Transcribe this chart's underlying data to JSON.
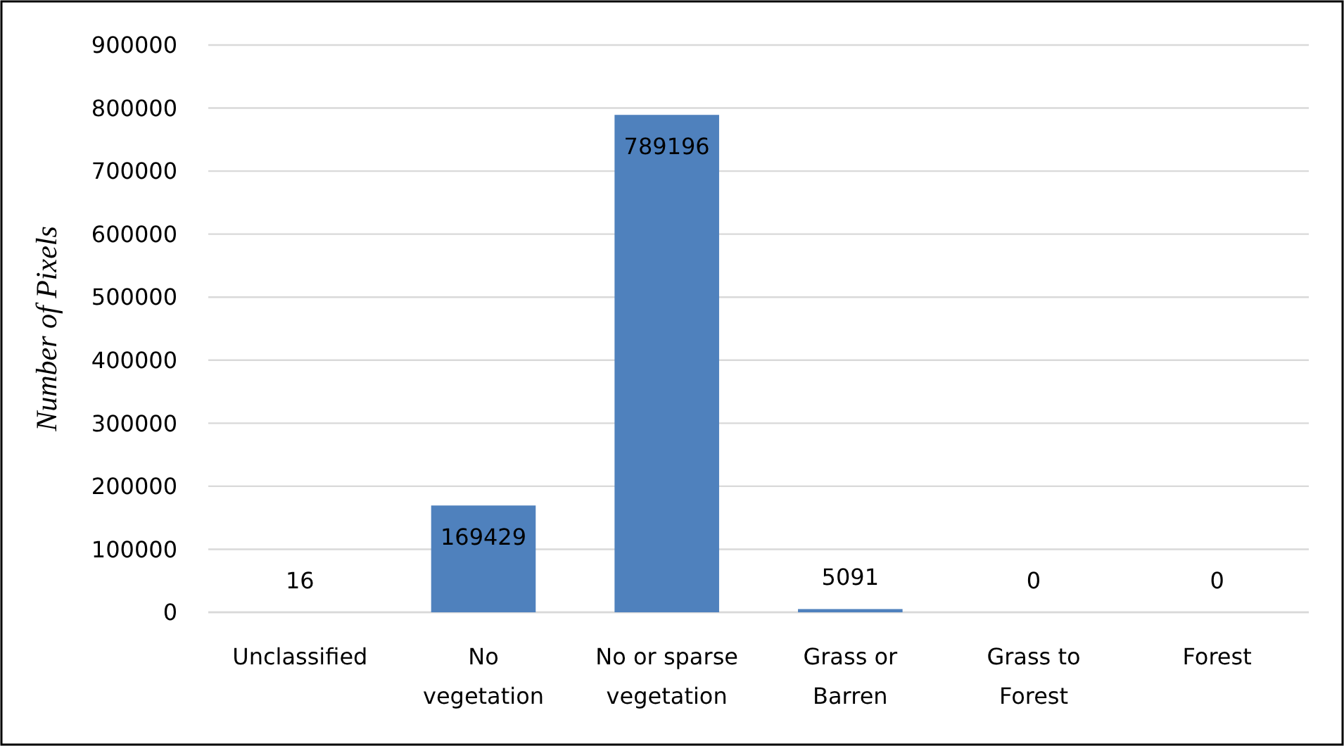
{
  "chart_data": {
    "type": "bar",
    "ylabel": "Number of Pixels",
    "categories": [
      "Unclassified",
      "No vegetation",
      "No or sparse vegetation",
      "Grass or Barren",
      "Grass to Forest",
      "Forest"
    ],
    "values": [
      16,
      169429,
      789196,
      5091,
      0,
      0
    ],
    "color": "#4f81bd",
    "ylim": [
      0,
      900000
    ],
    "yticks": [
      0,
      100000,
      200000,
      300000,
      400000,
      500000,
      600000,
      700000,
      800000,
      900000
    ],
    "grid": "y",
    "data_labels": true
  }
}
